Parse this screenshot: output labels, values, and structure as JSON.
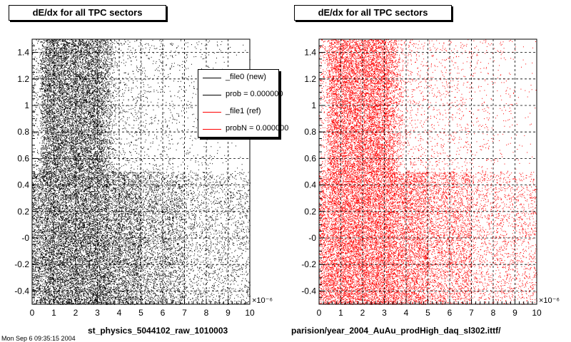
{
  "chart_data": [
    {
      "type": "scatter",
      "title": "dE/dx for all TPC sectors",
      "xlabel": "st_physics_5044102_raw_1010003",
      "ylabel": "",
      "x_exponent": "×10⁻⁶",
      "xlim": [
        0,
        10
      ],
      "ylim": [
        -0.5,
        1.5
      ],
      "x_ticks": [
        "0",
        "1",
        "2",
        "3",
        "4",
        "5",
        "6",
        "7",
        "8",
        "9",
        "10"
      ],
      "y_ticks": [
        "-0.4",
        "-0.2",
        "-0",
        "0.2",
        "0.4",
        "0.6",
        "0.8",
        "1",
        "1.2",
        "1.4"
      ],
      "grid": true,
      "marker_color": "#000000",
      "legend": {
        "placement": "top-right",
        "entries": [
          {
            "label": "_file0 (new)",
            "color": "#000000"
          },
          {
            "label": "prob = 0.000000",
            "color": "#000000"
          },
          {
            "label": "_file1 (ref)",
            "color": "#ff0000"
          },
          {
            "label": "probN = 0.000000",
            "color": "#ff0000"
          }
        ]
      },
      "density_bands": [
        {
          "x": [
            0.5,
            3.5
          ],
          "y": [
            -0.5,
            1.5
          ],
          "density": "very high"
        },
        {
          "x": [
            3.5,
            6.5
          ],
          "y": [
            -0.5,
            0.5
          ],
          "density": "high"
        },
        {
          "x": [
            3.5,
            10
          ],
          "y": [
            0.5,
            1.5
          ],
          "density": "low"
        }
      ]
    },
    {
      "type": "scatter",
      "title": "dE/dx for all TPC sectors",
      "xlabel": "parision/year_2004_AuAu_prodHigh_daq_sl302.ittf/",
      "ylabel": "",
      "x_exponent": "×10⁻⁶",
      "xlim": [
        0,
        10
      ],
      "ylim": [
        -0.5,
        1.5
      ],
      "x_ticks": [
        "0",
        "1",
        "2",
        "3",
        "4",
        "5",
        "6",
        "7",
        "8",
        "9",
        "10"
      ],
      "y_ticks": [
        "-0.4",
        "-0.2",
        "-0",
        "0.2",
        "0.4",
        "0.6",
        "0.8",
        "1",
        "1.2",
        "1.4"
      ],
      "grid": true,
      "marker_color": "#ff0000",
      "density_bands": [
        {
          "x": [
            0.5,
            3.5
          ],
          "y": [
            -0.5,
            1.5
          ],
          "density": "very high"
        },
        {
          "x": [
            3.5,
            6.5
          ],
          "y": [
            -0.5,
            0.5
          ],
          "density": "high"
        },
        {
          "x": [
            3.5,
            10
          ],
          "y": [
            0.5,
            1.5
          ],
          "density": "low"
        }
      ]
    }
  ],
  "footer": "Mon Sep  6 09:35:15 2004"
}
